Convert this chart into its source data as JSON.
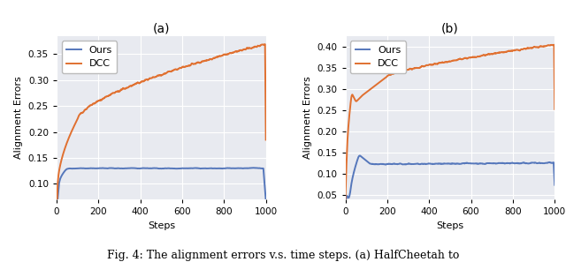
{
  "title_a": "(a)",
  "title_b": "(b)",
  "xlabel": "Steps",
  "ylabel": "Alignment Errors",
  "legend_labels": [
    "Ours",
    "DCC"
  ],
  "colors": {
    "ours": "#5577bb",
    "dcc": "#e07030"
  },
  "xlim": [
    0,
    1000
  ],
  "ylim_a": [
    0.07,
    0.385
  ],
  "ylim_b": [
    0.04,
    0.425
  ],
  "yticks_a": [
    0.1,
    0.15,
    0.2,
    0.25,
    0.3,
    0.35
  ],
  "yticks_b": [
    0.05,
    0.1,
    0.15,
    0.2,
    0.25,
    0.3,
    0.35,
    0.4
  ],
  "xticks": [
    0,
    200,
    400,
    600,
    800,
    1000
  ],
  "bg_color": "#e8eaf0",
  "fig_caption": "Fig. 4: The alignment errors v.s. time steps. (a) HalfCheetah to",
  "linewidth": 1.4,
  "title_fontsize": 10,
  "label_fontsize": 8,
  "tick_fontsize": 7.5,
  "legend_fontsize": 8,
  "caption_fontsize": 9
}
